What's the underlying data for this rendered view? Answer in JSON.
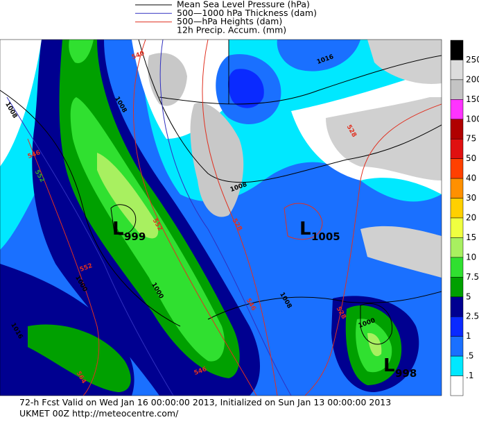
{
  "legend": {
    "items": [
      {
        "label": "Mean Sea Level Pressure (hPa)",
        "color": "#000000"
      },
      {
        "label": "500—1000 hPa Thickness (dam)",
        "color": "#3030c0"
      },
      {
        "label": "500—hPa Heights (dam)",
        "color": "#e03020"
      },
      {
        "label": "12h Precip. Accum. (mm)",
        "color": null
      }
    ]
  },
  "colorbar": {
    "labels": [
      "250",
      "200",
      "150",
      "100",
      "75",
      "50",
      "40",
      "30",
      "20",
      "15",
      "10",
      "7.5",
      "5",
      "2.5",
      "1",
      ".5",
      ".1"
    ],
    "colors": [
      "#000000",
      "#dcdcdc",
      "#c4c4c4",
      "#ff33ff",
      "#b00000",
      "#e01010",
      "#ff4000",
      "#ff9000",
      "#ffd000",
      "#f0ff40",
      "#a8f060",
      "#30e030",
      "#00a000",
      "#000090",
      "#0a2aff",
      "#1a70ff",
      "#00e8ff",
      "#ffffff"
    ]
  },
  "map": {
    "lows": [
      {
        "letter": "L",
        "value": "999"
      },
      {
        "letter": "L",
        "value": "1005"
      },
      {
        "letter": "L",
        "value": "998"
      }
    ],
    "contour_labels": [
      "1016",
      "1008",
      "1008",
      "1008",
      "1000",
      "1000",
      "1000",
      "1008",
      "1016",
      "540",
      "528",
      "528",
      "552",
      "528",
      "546",
      "546",
      "552",
      "564",
      "546",
      "552"
    ]
  },
  "footer": {
    "line1": "72-h Fcst Valid on Wed Jan 16 00:00:00 2013, Initialized on Sun Jan 13 00:00:00 2013",
    "line2": "UKMET 00Z http://meteocentre.com/"
  }
}
